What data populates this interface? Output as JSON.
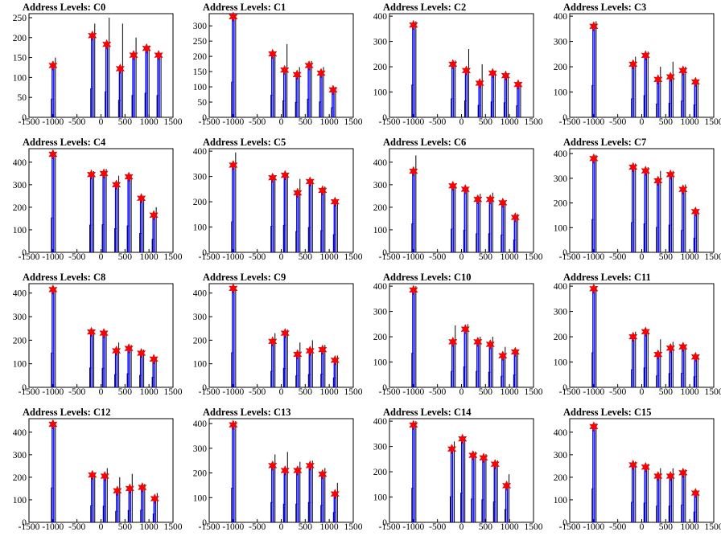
{
  "chart_data": [
    {
      "type": "histogram",
      "title": "Address Levels: C0",
      "xlim": [
        -1500,
        1500
      ],
      "ylim": [
        0,
        260
      ],
      "yticks": [
        0,
        50,
        100,
        150,
        200,
        250
      ],
      "xticks": [
        -1500,
        -1000,
        -500,
        0,
        500,
        1000,
        1500
      ],
      "peaks": [
        {
          "x": -1000,
          "bin_max": 150,
          "marker": 130
        },
        {
          "x": -180,
          "bin_max": 235,
          "marker": 205
        },
        {
          "x": 120,
          "bin_max": 250,
          "marker": 183
        },
        {
          "x": 400,
          "bin_max": 235,
          "marker": 122
        },
        {
          "x": 680,
          "bin_max": 200,
          "marker": 156
        },
        {
          "x": 950,
          "bin_max": 180,
          "marker": 173
        },
        {
          "x": 1200,
          "bin_max": 160,
          "marker": 156
        }
      ]
    },
    {
      "type": "histogram",
      "title": "Address Levels: C1",
      "xlim": [
        -1500,
        1500
      ],
      "ylim": [
        0,
        340
      ],
      "yticks": [
        0,
        50,
        100,
        150,
        200,
        250,
        300
      ],
      "xticks": [
        -1500,
        -1000,
        -500,
        0,
        500,
        1000,
        1500
      ],
      "peaks": [
        {
          "x": -1000,
          "bin_max": 335,
          "marker": 330
        },
        {
          "x": -180,
          "bin_max": 215,
          "marker": 208
        },
        {
          "x": 70,
          "bin_max": 240,
          "marker": 155
        },
        {
          "x": 330,
          "bin_max": 165,
          "marker": 140
        },
        {
          "x": 580,
          "bin_max": 185,
          "marker": 170
        },
        {
          "x": 830,
          "bin_max": 165,
          "marker": 145
        },
        {
          "x": 1080,
          "bin_max": 100,
          "marker": 90
        }
      ]
    },
    {
      "type": "histogram",
      "title": "Address Levels: C2",
      "xlim": [
        -1500,
        1500
      ],
      "ylim": [
        0,
        410
      ],
      "yticks": [
        0,
        100,
        200,
        300,
        400
      ],
      "xticks": [
        -1500,
        -1000,
        -500,
        0,
        500,
        1000,
        1500
      ],
      "peaks": [
        {
          "x": -1000,
          "bin_max": 380,
          "marker": 365
        },
        {
          "x": -180,
          "bin_max": 225,
          "marker": 210
        },
        {
          "x": 100,
          "bin_max": 270,
          "marker": 185
        },
        {
          "x": 380,
          "bin_max": 210,
          "marker": 135
        },
        {
          "x": 650,
          "bin_max": 185,
          "marker": 175
        },
        {
          "x": 920,
          "bin_max": 170,
          "marker": 165
        },
        {
          "x": 1180,
          "bin_max": 140,
          "marker": 130
        }
      ]
    },
    {
      "type": "histogram",
      "title": "Address Levels: C3",
      "xlim": [
        -1500,
        1500
      ],
      "ylim": [
        0,
        410
      ],
      "yticks": [
        0,
        100,
        200,
        300,
        400
      ],
      "xticks": [
        -1500,
        -1000,
        -500,
        0,
        500,
        1000,
        1500
      ],
      "peaks": [
        {
          "x": -1000,
          "bin_max": 380,
          "marker": 360
        },
        {
          "x": -180,
          "bin_max": 240,
          "marker": 210
        },
        {
          "x": 80,
          "bin_max": 260,
          "marker": 245
        },
        {
          "x": 340,
          "bin_max": 200,
          "marker": 150
        },
        {
          "x": 600,
          "bin_max": 220,
          "marker": 160
        },
        {
          "x": 860,
          "bin_max": 200,
          "marker": 185
        },
        {
          "x": 1120,
          "bin_max": 150,
          "marker": 140
        }
      ]
    },
    {
      "type": "histogram",
      "title": "Address Levels: C4",
      "xlim": [
        -1500,
        1500
      ],
      "ylim": [
        0,
        460
      ],
      "yticks": [
        0,
        100,
        200,
        300,
        400
      ],
      "xticks": [
        -1500,
        -1000,
        -500,
        0,
        500,
        1000,
        1500
      ],
      "peaks": [
        {
          "x": -1000,
          "bin_max": 440,
          "marker": 435
        },
        {
          "x": -200,
          "bin_max": 360,
          "marker": 345
        },
        {
          "x": 60,
          "bin_max": 370,
          "marker": 350
        },
        {
          "x": 320,
          "bin_max": 340,
          "marker": 300
        },
        {
          "x": 580,
          "bin_max": 345,
          "marker": 335
        },
        {
          "x": 840,
          "bin_max": 250,
          "marker": 240
        },
        {
          "x": 1100,
          "bin_max": 200,
          "marker": 165
        }
      ]
    },
    {
      "type": "histogram",
      "title": "Address Levels: C5",
      "xlim": [
        -1500,
        1500
      ],
      "ylim": [
        0,
        410
      ],
      "yticks": [
        0,
        100,
        200,
        300,
        400
      ],
      "xticks": [
        -1500,
        -1000,
        -500,
        0,
        500,
        1000,
        1500
      ],
      "peaks": [
        {
          "x": -1000,
          "bin_max": 395,
          "marker": 345
        },
        {
          "x": -180,
          "bin_max": 305,
          "marker": 295
        },
        {
          "x": 80,
          "bin_max": 315,
          "marker": 305
        },
        {
          "x": 340,
          "bin_max": 290,
          "marker": 235
        },
        {
          "x": 600,
          "bin_max": 290,
          "marker": 280
        },
        {
          "x": 860,
          "bin_max": 260,
          "marker": 245
        },
        {
          "x": 1120,
          "bin_max": 210,
          "marker": 200
        }
      ]
    },
    {
      "type": "histogram",
      "title": "Address Levels: C6",
      "xlim": [
        -1500,
        1500
      ],
      "ylim": [
        0,
        460
      ],
      "yticks": [
        0,
        100,
        200,
        300,
        400
      ],
      "xticks": [
        -1500,
        -1000,
        -500,
        0,
        500,
        1000,
        1500
      ],
      "peaks": [
        {
          "x": -1000,
          "bin_max": 430,
          "marker": 360
        },
        {
          "x": -180,
          "bin_max": 300,
          "marker": 295
        },
        {
          "x": 80,
          "bin_max": 290,
          "marker": 280
        },
        {
          "x": 340,
          "bin_max": 260,
          "marker": 235
        },
        {
          "x": 600,
          "bin_max": 265,
          "marker": 235
        },
        {
          "x": 860,
          "bin_max": 230,
          "marker": 220
        },
        {
          "x": 1120,
          "bin_max": 170,
          "marker": 155
        }
      ]
    },
    {
      "type": "histogram",
      "title": "Address Levels: C7",
      "xlim": [
        -1500,
        1500
      ],
      "ylim": [
        0,
        420
      ],
      "yticks": [
        0,
        100,
        200,
        300,
        400
      ],
      "xticks": [
        -1500,
        -1000,
        -500,
        0,
        500,
        1000,
        1500
      ],
      "peaks": [
        {
          "x": -1000,
          "bin_max": 395,
          "marker": 380
        },
        {
          "x": -180,
          "bin_max": 360,
          "marker": 345
        },
        {
          "x": 80,
          "bin_max": 345,
          "marker": 330
        },
        {
          "x": 340,
          "bin_max": 330,
          "marker": 290
        },
        {
          "x": 600,
          "bin_max": 330,
          "marker": 315
        },
        {
          "x": 860,
          "bin_max": 275,
          "marker": 255
        },
        {
          "x": 1120,
          "bin_max": 175,
          "marker": 165
        }
      ]
    },
    {
      "type": "histogram",
      "title": "Address Levels: C8",
      "xlim": [
        -1500,
        1500
      ],
      "ylim": [
        0,
        440
      ],
      "yticks": [
        0,
        100,
        200,
        300,
        400
      ],
      "xticks": [
        -1500,
        -1000,
        -500,
        0,
        500,
        1000,
        1500
      ],
      "peaks": [
        {
          "x": -1000,
          "bin_max": 420,
          "marker": 415
        },
        {
          "x": -200,
          "bin_max": 245,
          "marker": 235
        },
        {
          "x": 60,
          "bin_max": 240,
          "marker": 230
        },
        {
          "x": 320,
          "bin_max": 190,
          "marker": 155
        },
        {
          "x": 580,
          "bin_max": 180,
          "marker": 165
        },
        {
          "x": 840,
          "bin_max": 160,
          "marker": 145
        },
        {
          "x": 1100,
          "bin_max": 130,
          "marker": 120
        }
      ]
    },
    {
      "type": "histogram",
      "title": "Address Levels: C9",
      "xlim": [
        -1500,
        1500
      ],
      "ylim": [
        0,
        440
      ],
      "yticks": [
        0,
        100,
        200,
        300,
        400
      ],
      "xticks": [
        -1500,
        -1000,
        -500,
        0,
        500,
        1000,
        1500
      ],
      "peaks": [
        {
          "x": -1000,
          "bin_max": 420,
          "marker": 420
        },
        {
          "x": -180,
          "bin_max": 230,
          "marker": 195
        },
        {
          "x": 80,
          "bin_max": 245,
          "marker": 230
        },
        {
          "x": 340,
          "bin_max": 190,
          "marker": 140
        },
        {
          "x": 600,
          "bin_max": 200,
          "marker": 155
        },
        {
          "x": 860,
          "bin_max": 180,
          "marker": 160
        },
        {
          "x": 1120,
          "bin_max": 135,
          "marker": 115
        }
      ]
    },
    {
      "type": "histogram",
      "title": "Address Levels: C10",
      "xlim": [
        -1500,
        1500
      ],
      "ylim": [
        0,
        410
      ],
      "yticks": [
        0,
        100,
        200,
        300,
        400
      ],
      "xticks": [
        -1500,
        -1000,
        -500,
        0,
        500,
        1000,
        1500
      ],
      "peaks": [
        {
          "x": -1000,
          "bin_max": 400,
          "marker": 385
        },
        {
          "x": -180,
          "bin_max": 245,
          "marker": 180
        },
        {
          "x": 80,
          "bin_max": 250,
          "marker": 230
        },
        {
          "x": 340,
          "bin_max": 200,
          "marker": 180
        },
        {
          "x": 600,
          "bin_max": 200,
          "marker": 170
        },
        {
          "x": 860,
          "bin_max": 160,
          "marker": 125
        },
        {
          "x": 1120,
          "bin_max": 150,
          "marker": 140
        }
      ]
    },
    {
      "type": "histogram",
      "title": "Address Levels: C11",
      "xlim": [
        -1500,
        1500
      ],
      "ylim": [
        0,
        410
      ],
      "yticks": [
        0,
        100,
        200,
        300,
        400
      ],
      "xticks": [
        -1500,
        -1000,
        -500,
        0,
        500,
        1000,
        1500
      ],
      "peaks": [
        {
          "x": -1000,
          "bin_max": 400,
          "marker": 390
        },
        {
          "x": -180,
          "bin_max": 220,
          "marker": 200
        },
        {
          "x": 80,
          "bin_max": 230,
          "marker": 220
        },
        {
          "x": 340,
          "bin_max": 190,
          "marker": 130
        },
        {
          "x": 600,
          "bin_max": 180,
          "marker": 155
        },
        {
          "x": 860,
          "bin_max": 165,
          "marker": 160
        },
        {
          "x": 1120,
          "bin_max": 130,
          "marker": 120
        }
      ]
    },
    {
      "type": "histogram",
      "title": "Address Levels: C12",
      "xlim": [
        -1500,
        1500
      ],
      "ylim": [
        0,
        460
      ],
      "yticks": [
        0,
        100,
        200,
        300,
        400
      ],
      "xticks": [
        -1500,
        -1000,
        -500,
        0,
        500,
        1000,
        1500
      ],
      "peaks": [
        {
          "x": -1000,
          "bin_max": 440,
          "marker": 435
        },
        {
          "x": -180,
          "bin_max": 220,
          "marker": 210
        },
        {
          "x": 80,
          "bin_max": 240,
          "marker": 205
        },
        {
          "x": 340,
          "bin_max": 200,
          "marker": 140
        },
        {
          "x": 600,
          "bin_max": 215,
          "marker": 150
        },
        {
          "x": 860,
          "bin_max": 170,
          "marker": 155
        },
        {
          "x": 1120,
          "bin_max": 130,
          "marker": 105
        }
      ]
    },
    {
      "type": "histogram",
      "title": "Address Levels: C13",
      "xlim": [
        -1500,
        1500
      ],
      "ylim": [
        0,
        420
      ],
      "yticks": [
        0,
        100,
        200,
        300,
        400
      ],
      "xticks": [
        -1500,
        -1000,
        -500,
        0,
        500,
        1000,
        1500
      ],
      "peaks": [
        {
          "x": -1000,
          "bin_max": 410,
          "marker": 395
        },
        {
          "x": -180,
          "bin_max": 275,
          "marker": 230
        },
        {
          "x": 80,
          "bin_max": 285,
          "marker": 210
        },
        {
          "x": 340,
          "bin_max": 245,
          "marker": 210
        },
        {
          "x": 600,
          "bin_max": 250,
          "marker": 230
        },
        {
          "x": 860,
          "bin_max": 220,
          "marker": 195
        },
        {
          "x": 1120,
          "bin_max": 160,
          "marker": 115
        }
      ]
    },
    {
      "type": "histogram",
      "title": "Address Levels: C14",
      "xlim": [
        -1500,
        1500
      ],
      "ylim": [
        0,
        410
      ],
      "yticks": [
        0,
        100,
        200,
        300,
        400
      ],
      "xticks": [
        -1500,
        -1000,
        -500,
        0,
        500,
        1000,
        1500
      ],
      "peaks": [
        {
          "x": -1000,
          "bin_max": 400,
          "marker": 385
        },
        {
          "x": -200,
          "bin_max": 320,
          "marker": 290
        },
        {
          "x": 20,
          "bin_max": 340,
          "marker": 330
        },
        {
          "x": 240,
          "bin_max": 280,
          "marker": 265
        },
        {
          "x": 460,
          "bin_max": 270,
          "marker": 255
        },
        {
          "x": 700,
          "bin_max": 245,
          "marker": 230
        },
        {
          "x": 940,
          "bin_max": 190,
          "marker": 145
        }
      ]
    },
    {
      "type": "histogram",
      "title": "Address Levels: C15",
      "xlim": [
        -1500,
        1500
      ],
      "ylim": [
        0,
        460
      ],
      "yticks": [
        0,
        100,
        200,
        300,
        400
      ],
      "xticks": [
        -1500,
        -1000,
        -500,
        0,
        500,
        1000,
        1500
      ],
      "peaks": [
        {
          "x": -1000,
          "bin_max": 440,
          "marker": 425
        },
        {
          "x": -180,
          "bin_max": 270,
          "marker": 255
        },
        {
          "x": 80,
          "bin_max": 260,
          "marker": 245
        },
        {
          "x": 340,
          "bin_max": 240,
          "marker": 205
        },
        {
          "x": 600,
          "bin_max": 240,
          "marker": 205
        },
        {
          "x": 860,
          "bin_max": 235,
          "marker": 220
        },
        {
          "x": 1120,
          "bin_max": 140,
          "marker": 130
        }
      ]
    }
  ],
  "colors": {
    "histogram": "#0000ff",
    "overlay": "#000000",
    "marker": "#ff0000",
    "axis": "#000000"
  }
}
